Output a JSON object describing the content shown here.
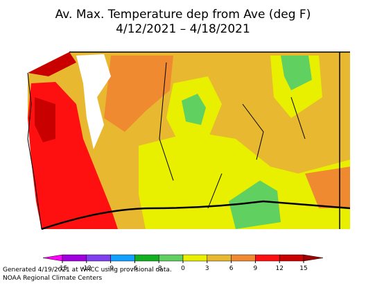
{
  "title": "Av. Max. Temperature dep from Ave (deg F)",
  "subtitle": "4/12/2021 – 4/18/2021",
  "colorbar": {
    "ticks": [
      -15,
      -12,
      -9,
      -6,
      -3,
      0,
      3,
      6,
      9,
      12,
      15
    ],
    "colors": [
      "#ff00ff",
      "#a000e0",
      "#8040f0",
      "#10a0ff",
      "#10b020",
      "#60d060",
      "#e8f000",
      "#e8b830",
      "#f08a30",
      "#ff1010",
      "#c80000",
      "#a00000"
    ]
  },
  "footer": [
    "Generated 4/19/2021 at WRCC using provisional data.",
    "NOAA Regional Climate Centers"
  ]
}
